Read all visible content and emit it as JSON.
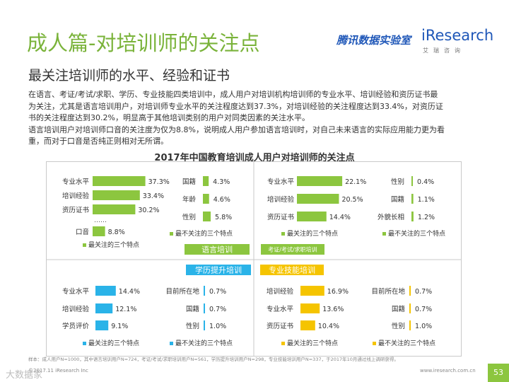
{
  "page": {
    "title": "成人篇-对培训师的关注点",
    "subtitle": "最关注培训师的水平、经验和证书",
    "logo_tencent": "腾讯数据实验室",
    "logo_iresearch": "iResearch",
    "logo_iresearch_sub": "艾瑞咨询",
    "body_lines": [
      "在语言、考证/考试/求职、学历、专业技能四类培训中，成人用户对培训机构培训师的专业水平、培训经验和资历证书最",
      "为关注，尤其是语言培训用户，对培训师专业水平的关注程度达到37.3%，对培训经验的关注程度达到33.4%，对资历证",
      "书的关注程度达到30.2%，明显高于其他培训类别的用户对同类因素的关注水平。",
      "语言培训用户对培训师口音的关注度为仅为8.8%，说明成人用户参加语言培训时，对自己未来语言的实际应用能力更为看",
      "重，而对于口音是否纯正则相对无所谓。"
    ],
    "footnote": "样本：成人用户N=1000，其中语言培训用户N=724，考证/考试/求职培训用户N=561，学历提升培训用户N=298，专业技能培训用户N=337，于2017年10月通过线上调研获得。",
    "source": "©2017.11 iResearch Inc",
    "website": "www.iresearch.com.cn",
    "page_number": "53",
    "watermark": "大数据家"
  },
  "chart_data": {
    "type": "bar",
    "title": "2017年中国教育培训成人用户对培训师的关注点",
    "colors": {
      "green": "#8cc63f",
      "blue": "#2ab3e8",
      "yellow": "#f5c400"
    },
    "panels": [
      {
        "name": "语言培训",
        "color_key": "green",
        "label_style": "banner",
        "most_legend": "最关注的三个特点",
        "least_legend": "最不关注的三个特点",
        "most": [
          {
            "label": "专业水平",
            "value": 37.3
          },
          {
            "label": "培训经验",
            "value": 33.4
          },
          {
            "label": "资历证书",
            "value": 30.2
          },
          {
            "label": "口音",
            "value": 8.8
          }
        ],
        "ellipsis": "……",
        "least": [
          {
            "label": "国籍",
            "value": 4.3
          },
          {
            "label": "年龄",
            "value": 4.6
          },
          {
            "label": "性别",
            "value": 5.8
          }
        ]
      },
      {
        "name": "考证/考试/求职培训",
        "color_key": "green",
        "label_style": "banner",
        "most_legend": "最关注的三个特点",
        "least_legend": "最不关注的三个特点",
        "most": [
          {
            "label": "专业水平",
            "value": 22.1
          },
          {
            "label": "培训经验",
            "value": 20.5
          },
          {
            "label": "资历证书",
            "value": 14.4
          }
        ],
        "least": [
          {
            "label": "性别",
            "value": 0.4
          },
          {
            "label": "国籍",
            "value": 1.1
          },
          {
            "label": "外貌长相",
            "value": 1.2
          }
        ]
      },
      {
        "name": "学历提升培训",
        "color_key": "blue",
        "label_style": "banner",
        "most_legend": "最关注的三个特点",
        "least_legend": "最不关注的三个特点",
        "most": [
          {
            "label": "专业水平",
            "value": 14.4
          },
          {
            "label": "培训经验",
            "value": 12.1
          },
          {
            "label": "学员评价",
            "value": 9.1
          }
        ],
        "least": [
          {
            "label": "目前所在地",
            "value": 0.7
          },
          {
            "label": "国籍",
            "value": 0.7
          },
          {
            "label": "性别",
            "value": 1.0
          }
        ]
      },
      {
        "name": "专业技能培训",
        "color_key": "yellow",
        "label_style": "banner",
        "most_legend": "最关注的三个特点",
        "least_legend": "最不关注的三个特点",
        "most": [
          {
            "label": "培训经验",
            "value": 16.9
          },
          {
            "label": "专业水平",
            "value": 13.6
          },
          {
            "label": "资历证书",
            "value": 10.4
          }
        ],
        "least": [
          {
            "label": "目前所在地",
            "value": 0.7
          },
          {
            "label": "国籍",
            "value": 0.7
          },
          {
            "label": "性别",
            "value": 1.0
          }
        ]
      }
    ]
  }
}
